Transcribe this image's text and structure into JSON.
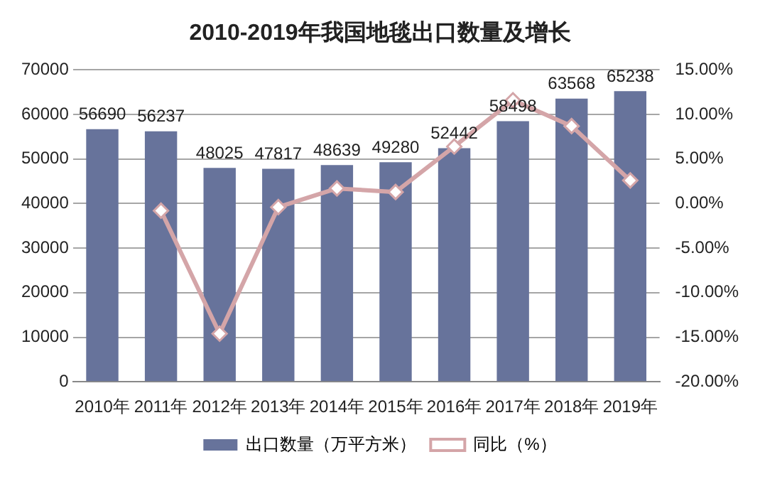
{
  "chart_data": {
    "type": "bar",
    "title": "2010-2019年我国地毯出口数量及增长",
    "categories": [
      "2010年",
      "2011年",
      "2012年",
      "2013年",
      "2014年",
      "2015年",
      "2016年",
      "2017年",
      "2018年",
      "2019年"
    ],
    "series": [
      {
        "name": "出口数量（万平方米）",
        "color": "#67739b",
        "values": [
          56690,
          56237,
          48025,
          47817,
          48639,
          49280,
          52442,
          58498,
          63568,
          65238
        ],
        "value_labels": [
          "56690",
          "56237",
          "48025",
          "47817",
          "48639",
          "49280",
          "52442",
          "58498",
          "63568",
          "65238"
        ]
      },
      {
        "name": "同比（%）",
        "type": "line",
        "axis": "y2",
        "color": "#d4a5a8",
        "marker": "diamond",
        "values": [
          null,
          -0.8,
          -14.6,
          -0.4,
          1.7,
          1.3,
          6.4,
          11.6,
          8.7,
          2.6
        ]
      }
    ],
    "ylim": [
      0,
      70000
    ],
    "yticks": [
      0,
      10000,
      20000,
      30000,
      40000,
      50000,
      60000,
      70000
    ],
    "y2lim": [
      -20,
      15
    ],
    "y2ticks": [
      {
        "value": -20,
        "label": "-20.00%"
      },
      {
        "value": -15,
        "label": "-15.00%"
      },
      {
        "value": -10,
        "label": "-10.00%"
      },
      {
        "value": -5,
        "label": "-5.00%"
      },
      {
        "value": 0,
        "label": "0.00%"
      },
      {
        "value": 5,
        "label": "5.00%"
      },
      {
        "value": 10,
        "label": "10.00%"
      },
      {
        "value": 15,
        "label": "15.00%"
      }
    ],
    "grid": "y",
    "legend": "bottom"
  }
}
